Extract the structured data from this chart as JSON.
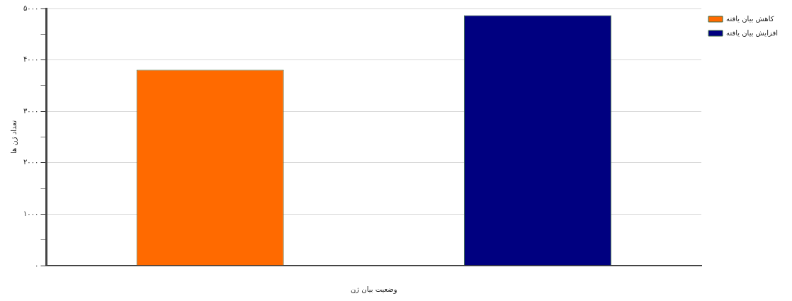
{
  "chart_data": {
    "type": "bar",
    "xlabel": "وضعیت بیان ژن",
    "ylabel": "تعداد ژن ها",
    "categories": [
      null,
      null
    ],
    "series": [
      {
        "name": "کاهش بیان یافته",
        "color": "#ff6a00",
        "values": [
          3810,
          null
        ]
      },
      {
        "name": "افزایش بیان یافته",
        "color": "#000080",
        "values": [
          null,
          4870
        ]
      }
    ],
    "ylim": [
      0,
      5000
    ],
    "yticks": [
      {
        "value": 0,
        "label": "۰"
      },
      {
        "value": 500,
        "label": null
      },
      {
        "value": 1000,
        "label": "۱۰۰۰"
      },
      {
        "value": 1500,
        "label": null
      },
      {
        "value": 2000,
        "label": "۲۰۰۰"
      },
      {
        "value": 2500,
        "label": null
      },
      {
        "value": 3000,
        "label": "۳۰۰۰"
      },
      {
        "value": 3500,
        "label": null
      },
      {
        "value": 4000,
        "label": "۴۰۰۰"
      },
      {
        "value": 4500,
        "label": null
      },
      {
        "value": 5000,
        "label": "۵۰۰۰"
      }
    ],
    "grid": "y",
    "legend": "top right"
  }
}
